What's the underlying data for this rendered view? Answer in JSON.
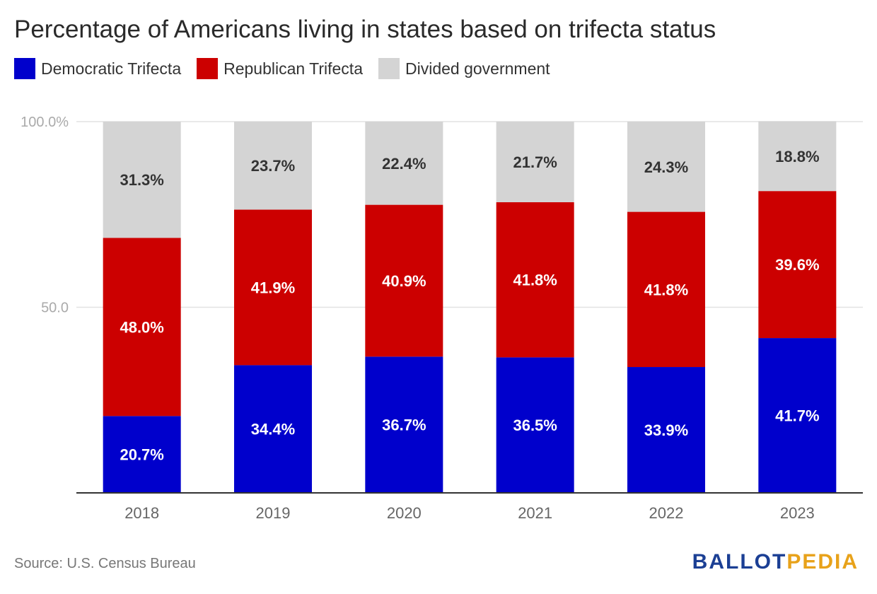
{
  "chart_data": {
    "type": "bar",
    "stacked": true,
    "title": "Percentage of Americans living in states based on trifecta status",
    "categories": [
      "2018",
      "2019",
      "2020",
      "2021",
      "2022",
      "2023"
    ],
    "series": [
      {
        "name": "Democratic Trifecta",
        "color": "#0000cc",
        "values": [
          20.7,
          34.4,
          36.7,
          36.5,
          33.9,
          41.7
        ],
        "labels": [
          "20.7%",
          "34.4%",
          "36.7%",
          "36.5%",
          "33.9%",
          "41.7%"
        ]
      },
      {
        "name": "Republican Trifecta",
        "color": "#cc0000",
        "values": [
          48.0,
          41.9,
          40.9,
          41.8,
          41.8,
          39.6
        ],
        "labels": [
          "48.0%",
          "41.9%",
          "40.9%",
          "41.8%",
          "41.8%",
          "39.6%"
        ]
      },
      {
        "name": "Divided government",
        "color": "#d4d4d4",
        "values": [
          31.3,
          23.7,
          22.4,
          21.7,
          24.3,
          18.8
        ],
        "labels": [
          "31.3%",
          "23.7%",
          "22.4%",
          "21.7%",
          "24.3%",
          "18.8%"
        ]
      }
    ],
    "ylim": [
      0,
      100
    ],
    "yticks": [
      50,
      100
    ],
    "ytick_labels": [
      "50.0",
      "100.0%"
    ],
    "grid": true,
    "legend_position": "top-left",
    "source": "Source: U.S. Census Bureau"
  },
  "branding": {
    "part1": "BALLOT",
    "part2": "PEDIA",
    "part1_color": "#1b3f94",
    "part2_color": "#e8a21a"
  }
}
